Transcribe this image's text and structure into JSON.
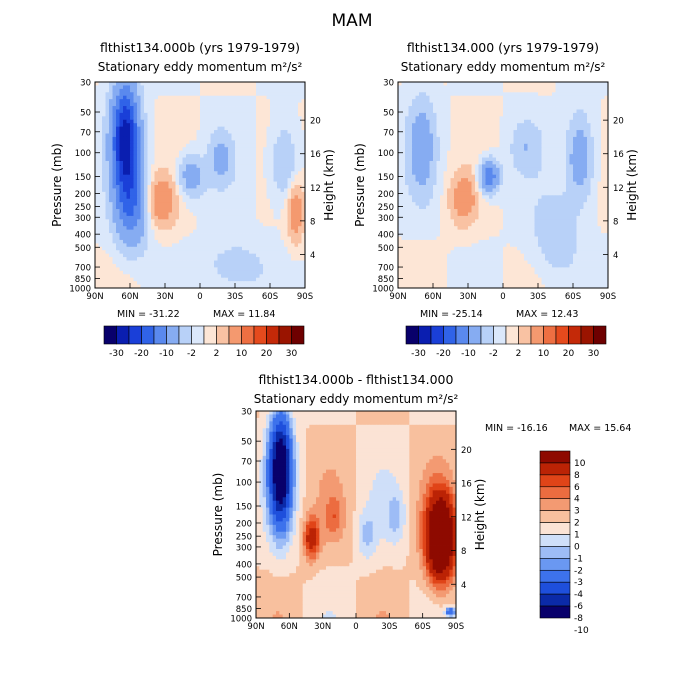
{
  "season_title": "MAM",
  "colors": {
    "scale1": [
      "#08006b",
      "#0a1eb0",
      "#1a3fd8",
      "#3063e8",
      "#5a89ee",
      "#86acf2",
      "#b8d1f8",
      "#dbe8fb",
      "#fde6d6",
      "#f9c2a3",
      "#f4996f",
      "#ee6f42",
      "#e54a1d",
      "#c42908",
      "#9a1400",
      "#6e0000"
    ],
    "scale2": [
      "#08006b",
      "#0a1eb0",
      "#1a3fd8",
      "#3063e8",
      "#5a89ee",
      "#86acf2",
      "#b8d1f8",
      "#dbe8fb",
      "#fde6d6",
      "#f9c2a3",
      "#f4996f",
      "#ee6f42",
      "#e54a1d",
      "#c42908",
      "#9a1400",
      "#6e0000"
    ]
  },
  "chart_data": [
    {
      "type": "heatmap",
      "title": "flthist134.000b (yrs 1979-1979)",
      "subtitle": "Stationary eddy momentum  m²/s²",
      "ylabel": "Pressure (mb)",
      "ylabel_right": "Height (km)",
      "x_ticks": [
        "90N",
        "60N",
        "30N",
        "0",
        "30S",
        "60S",
        "90S"
      ],
      "x_values": [
        90,
        60,
        30,
        0,
        -30,
        -60,
        -90
      ],
      "y_ticks": [
        "30",
        "50",
        "70",
        "100",
        "150",
        "200",
        "250",
        "300",
        "400",
        "500",
        "700",
        "850",
        "1000"
      ],
      "y_values": [
        30,
        50,
        70,
        100,
        150,
        200,
        250,
        300,
        400,
        500,
        700,
        850,
        1000
      ],
      "ylim": [
        1000,
        30
      ],
      "height_ticks": [
        "4",
        "8",
        "12",
        "16",
        "20"
      ],
      "height_values": [
        4,
        8,
        12,
        16,
        20
      ],
      "min_label": "MIN = -31.22",
      "max_label": "MAX =  11.84",
      "levels": [
        "-30",
        "-20",
        "-10",
        "-2",
        "2",
        "10",
        "20",
        "30"
      ],
      "features": [
        {
          "lat": 64,
          "p": 80,
          "value": -28,
          "dlat": 8,
          "dlogp": 0.65
        },
        {
          "lat": 58,
          "p": 250,
          "value": -12,
          "dlat": 10,
          "dlogp": 0.5
        },
        {
          "lat": 34,
          "p": 230,
          "value": 9,
          "dlat": 9,
          "dlogp": 0.3
        },
        {
          "lat": 8,
          "p": 150,
          "value": -8,
          "dlat": 8,
          "dlogp": 0.25
        },
        {
          "lat": -18,
          "p": 110,
          "value": -6,
          "dlat": 7,
          "dlogp": 0.3
        },
        {
          "lat": -72,
          "p": 120,
          "value": -6,
          "dlat": 8,
          "dlogp": 0.45
        },
        {
          "lat": -82,
          "p": 280,
          "value": 8,
          "dlat": 5,
          "dlogp": 0.35
        },
        {
          "lat": -30,
          "p": 700,
          "value": -4,
          "dlat": 18,
          "dlogp": 0.3
        }
      ]
    },
    {
      "type": "heatmap",
      "title": "flthist134.000 (yrs 1979-1979)",
      "subtitle": "Stationary eddy momentum  m²/s²",
      "ylabel": "Pressure (mb)",
      "ylabel_right": "Height (km)",
      "x_ticks": [
        "90N",
        "60N",
        "30N",
        "0",
        "30S",
        "60S",
        "90S"
      ],
      "x_values": [
        90,
        60,
        30,
        0,
        -30,
        -60,
        -90
      ],
      "y_ticks": [
        "30",
        "50",
        "70",
        "100",
        "150",
        "200",
        "250",
        "300",
        "400",
        "500",
        "700",
        "850",
        "1000"
      ],
      "y_values": [
        30,
        50,
        70,
        100,
        150,
        200,
        250,
        300,
        400,
        500,
        700,
        850,
        1000
      ],
      "ylim": [
        1000,
        30
      ],
      "height_ticks": [
        "4",
        "8",
        "12",
        "16",
        "20"
      ],
      "height_values": [
        4,
        8,
        12,
        16,
        20
      ],
      "min_label": "MIN = -25.14",
      "max_label": "MAX =  12.43",
      "levels": [
        "-30",
        "-20",
        "-10",
        "-2",
        "2",
        "10",
        "20",
        "30"
      ],
      "features": [
        {
          "lat": 70,
          "p": 90,
          "value": -8,
          "dlat": 8,
          "dlogp": 0.55
        },
        {
          "lat": 34,
          "p": 220,
          "value": 8,
          "dlat": 8,
          "dlogp": 0.3
        },
        {
          "lat": 12,
          "p": 150,
          "value": -14,
          "dlat": 6,
          "dlogp": 0.2
        },
        {
          "lat": -20,
          "p": 90,
          "value": -4,
          "dlat": 9,
          "dlogp": 0.3
        },
        {
          "lat": -66,
          "p": 110,
          "value": -9,
          "dlat": 8,
          "dlogp": 0.5
        },
        {
          "lat": -45,
          "p": 400,
          "value": -4,
          "dlat": 14,
          "dlogp": 0.5
        }
      ]
    },
    {
      "type": "heatmap",
      "title": "flthist134.000b - flthist134.000",
      "subtitle": "Stationary eddy momentum  m²/s²",
      "ylabel": "Pressure (mb)",
      "ylabel_right": "Height (km)",
      "x_ticks": [
        "90N",
        "60N",
        "30N",
        "0",
        "30S",
        "60S",
        "90S"
      ],
      "x_values": [
        90,
        60,
        30,
        0,
        -30,
        -60,
        -90
      ],
      "y_ticks": [
        "30",
        "50",
        "70",
        "100",
        "150",
        "200",
        "250",
        "300",
        "400",
        "500",
        "700",
        "850",
        "1000"
      ],
      "y_values": [
        30,
        50,
        70,
        100,
        150,
        200,
        250,
        300,
        400,
        500,
        700,
        850,
        1000
      ],
      "ylim": [
        1000,
        30
      ],
      "height_ticks": [
        "4",
        "8",
        "12",
        "16",
        "20"
      ],
      "height_values": [
        4,
        8,
        12,
        16,
        20
      ],
      "min_label": "MIN = -16.16",
      "max_label": "MAX =  15.64",
      "levels": [
        "-10",
        "-8",
        "-6",
        "-4",
        "-3",
        "-2",
        "-1",
        "0",
        "1",
        "2",
        "3",
        "4",
        "6",
        "8",
        "10"
      ],
      "features": [
        {
          "lat": 68,
          "p": 80,
          "value": -13,
          "dlat": 7,
          "dlogp": 0.65
        },
        {
          "lat": 40,
          "p": 260,
          "value": 5,
          "dlat": 5,
          "dlogp": 0.25
        },
        {
          "lat": 20,
          "p": 180,
          "value": 2,
          "dlat": 6,
          "dlogp": 0.25
        },
        {
          "lat": -10,
          "p": 250,
          "value": -2,
          "dlat": 6,
          "dlogp": 0.3
        },
        {
          "lat": -36,
          "p": 180,
          "value": -2,
          "dlat": 6,
          "dlogp": 0.3
        },
        {
          "lat": -76,
          "p": 260,
          "value": 12,
          "dlat": 9,
          "dlogp": 0.5
        },
        {
          "lat": -85,
          "p": 900,
          "value": -6,
          "dlat": 3,
          "dlogp": 0.05
        }
      ]
    }
  ]
}
